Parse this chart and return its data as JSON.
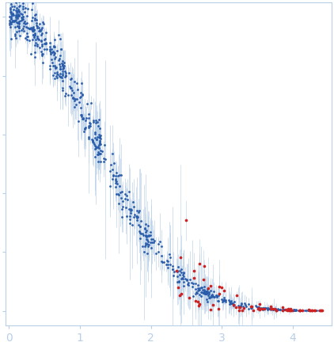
{
  "background_color": "#ffffff",
  "blue_color": "#2a5caa",
  "red_color": "#cc2222",
  "errorbar_color": "#b8cfe8",
  "axis_color": "#b8cfe8",
  "tick_color": "#b8cfe8",
  "label_color": "#b8cfe8",
  "seed": 42,
  "rg": 1.05,
  "i0": 1.0,
  "xlim": [
    -0.05,
    4.55
  ],
  "ylim": [
    -0.05,
    1.05
  ],
  "xticks": [
    0,
    1,
    2,
    3,
    4
  ]
}
